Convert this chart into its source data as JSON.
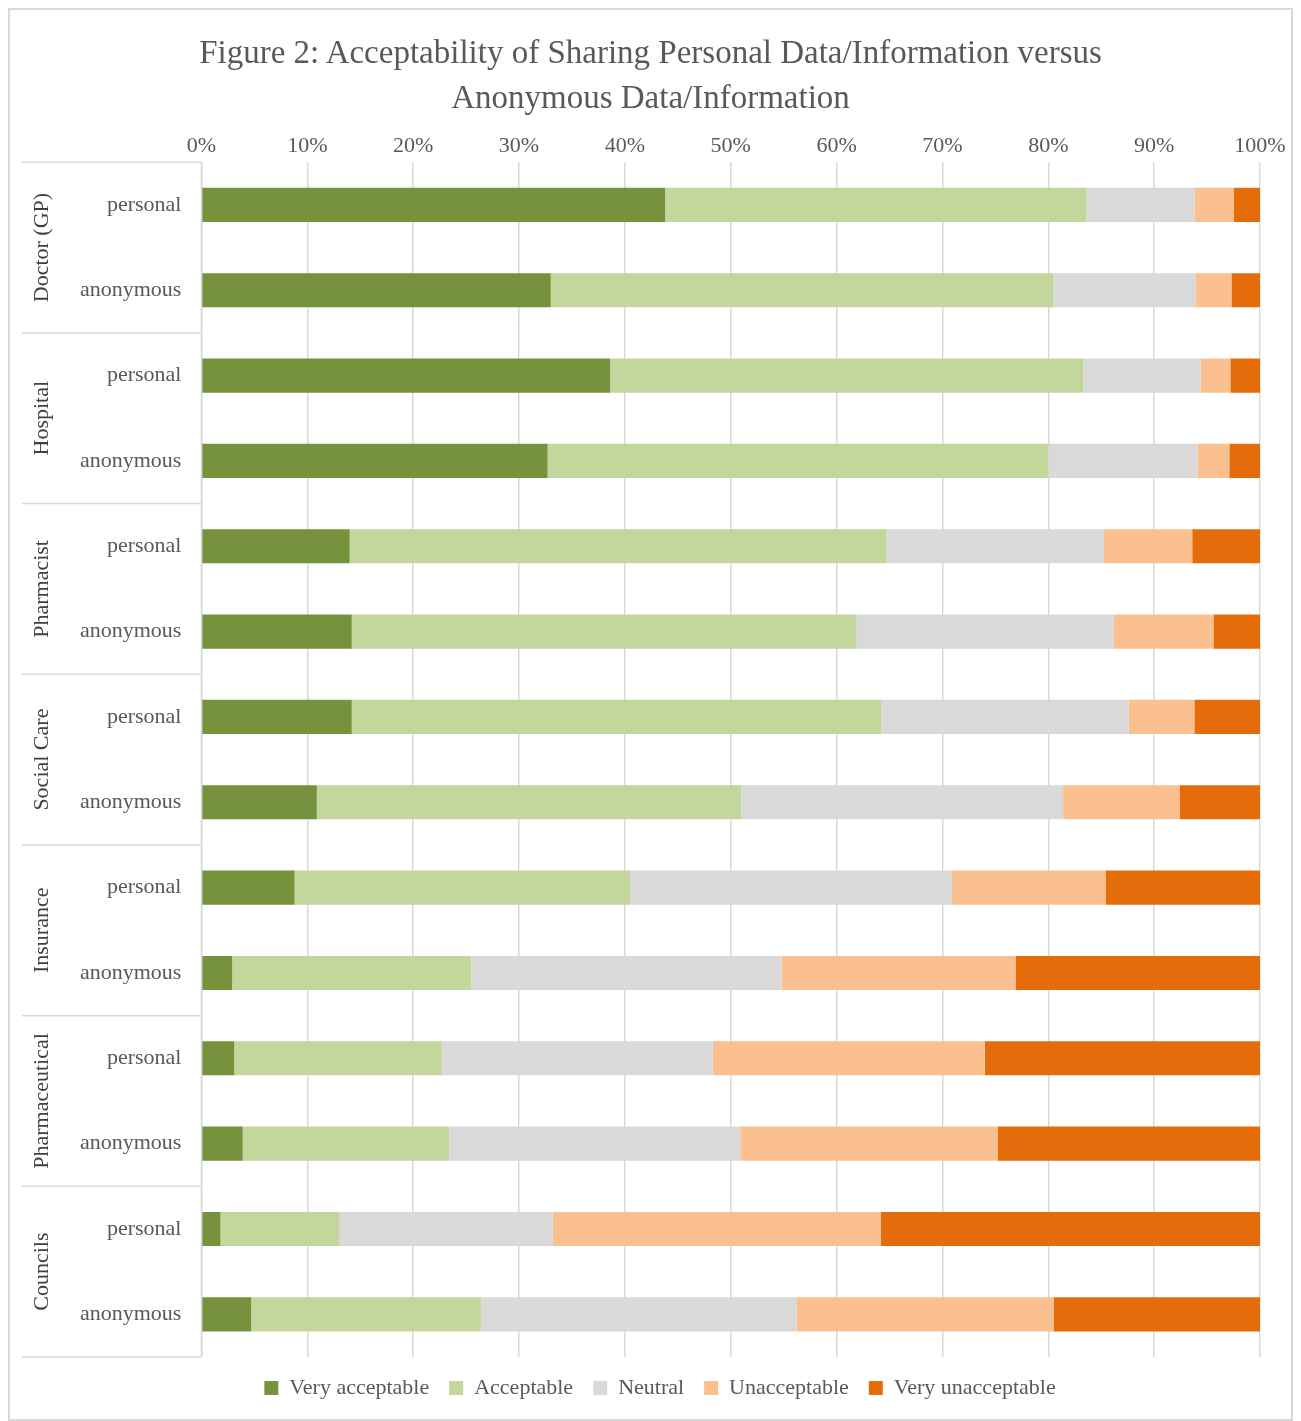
{
  "chart_data": {
    "type": "bar",
    "orientation": "horizontal",
    "stacked": true,
    "title": "Figure 2: Acceptability of Sharing Personal Data/Information versus Anonymous Data/Information",
    "categories": [
      "personal",
      "anonymous",
      "personal",
      "anonymous",
      "personal",
      "anonymous",
      "personal",
      "anonymous",
      "personal",
      "anonymous",
      "personal",
      "anonymous",
      "personal",
      "anonymous"
    ],
    "annotations": [
      "Doctor (GP)",
      "Hospital",
      "Pharmacist",
      "Social Care",
      "Insurance",
      "Pharmaceutical",
      "Councils"
    ],
    "series": [
      {
        "name": "Very acceptable",
        "color": "#76923c",
        "values": [
          43.8,
          33.0,
          38.6,
          32.7,
          14.0,
          14.2,
          14.2,
          10.9,
          8.8,
          2.9,
          3.1,
          3.9,
          1.8,
          4.7
        ]
      },
      {
        "name": "Acceptable",
        "color": "#c3d69b",
        "values": [
          39.8,
          47.5,
          44.7,
          47.3,
          50.7,
          47.7,
          50.0,
          40.1,
          31.7,
          22.6,
          19.6,
          19.5,
          11.2,
          21.7
        ]
      },
      {
        "name": "Neutral",
        "color": "#d9d9d9",
        "values": [
          10.2,
          13.4,
          11.1,
          14.1,
          20.5,
          24.3,
          23.4,
          30.4,
          30.4,
          29.3,
          25.6,
          27.5,
          20.2,
          29.8
        ]
      },
      {
        "name": "Unacceptable",
        "color": "#fac090",
        "values": [
          3.7,
          3.4,
          2.8,
          3.0,
          8.4,
          9.4,
          6.2,
          11.0,
          14.5,
          22.1,
          25.7,
          24.3,
          31.0,
          24.3
        ]
      },
      {
        "name": "Very unacceptable",
        "color": "#e46c0a",
        "values": [
          2.5,
          2.7,
          2.8,
          2.9,
          6.4,
          4.4,
          6.2,
          7.6,
          14.6,
          23.1,
          26.0,
          24.8,
          35.8,
          19.5
        ]
      }
    ],
    "xlim": [
      0,
      100
    ],
    "xticks": [
      {
        "value": 0,
        "label": "0%"
      },
      {
        "value": 10,
        "label": "10%"
      },
      {
        "value": 20,
        "label": "20%"
      },
      {
        "value": 30,
        "label": "30%"
      },
      {
        "value": 40,
        "label": "40%"
      },
      {
        "value": 50,
        "label": "50%"
      },
      {
        "value": 60,
        "label": "60%"
      },
      {
        "value": 70,
        "label": "70%"
      },
      {
        "value": 80,
        "label": "80%"
      },
      {
        "value": 90,
        "label": "90%"
      },
      {
        "value": 100,
        "label": "100%"
      }
    ],
    "grid": "x",
    "legend": "bottom"
  }
}
